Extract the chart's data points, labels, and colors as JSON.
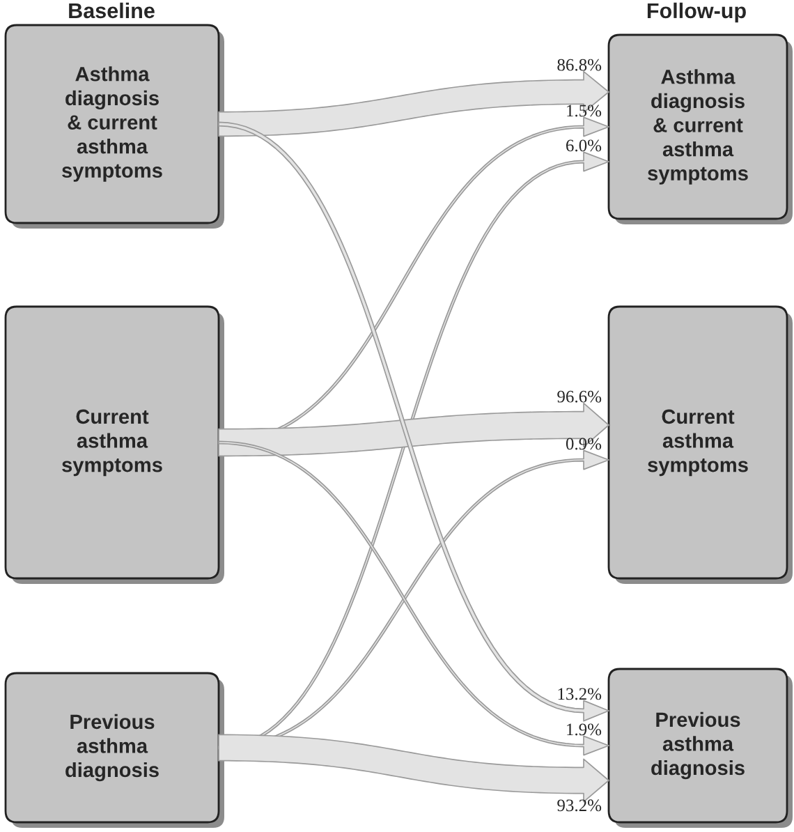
{
  "chart_data": {
    "type": "other",
    "annotations": [
      "Baseline",
      "Follow-up"
    ],
    "categories": [
      "Asthma\ndiagnosis\n& current\nasthma\nsymptoms",
      "Current\nasthma\nsymptoms",
      "Previous\nasthma\ndiagnosis"
    ],
    "y_categories": [
      "Asthma\ndiagnosis\n& current\nasthma\nsymptoms",
      "Current\nasthma\nsymptoms",
      "Previous\nasthma\ndiagnosis"
    ],
    "series": [
      {
        "color": "#e3e3e3",
        "values": [
          86.8,
          null,
          13.2
        ],
        "value_labels": [
          "86.8%",
          null,
          "13.2%"
        ]
      },
      {
        "color": "#e3e3e3",
        "values": [
          1.5,
          96.6,
          1.9
        ],
        "value_labels": [
          "1.5%",
          "96.6%",
          "1.9%"
        ]
      },
      {
        "color": "#e3e3e3",
        "values": [
          6.0,
          0.9,
          93.2
        ],
        "value_labels": [
          "6.0%",
          "0.9%",
          "93.2%"
        ]
      }
    ]
  }
}
